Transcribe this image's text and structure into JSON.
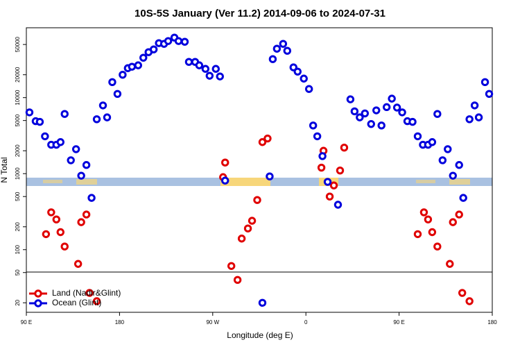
{
  "chart_data": {
    "type": "scatter",
    "title": "10S-5S January (Ver 11.2)   2014-09-06 to 2024-07-31",
    "x_label": "Longitude (deg E)",
    "y_label": "N Total",
    "xlim": [
      90,
      540
    ],
    "xticks": [
      {
        "value": 90,
        "label": "90 E"
      },
      180,
      {
        "value": 270,
        "label": "90 W"
      },
      {
        "value": 360,
        "label": "0"
      },
      {
        "value": 450,
        "label": "90 E"
      },
      {
        "value": 540,
        "label": "180"
      }
    ],
    "ylim": [
      15,
      83000
    ],
    "yticks": [
      20,
      50,
      100,
      200,
      500,
      1000,
      2000,
      5000,
      10000,
      20000,
      50000
    ],
    "ylog": true,
    "legend": "bottomleft",
    "series": [
      {
        "name": "Land (Nadir&Glint)",
        "color": "#e00000",
        "x": [
          109,
          114,
          119,
          123,
          127,
          140,
          143,
          148,
          151,
          158,
          280,
          282,
          288,
          294,
          298,
          304,
          308,
          313,
          318,
          323,
          375,
          377,
          383,
          387,
          393,
          397,
          468,
          474,
          478,
          482,
          487,
          499,
          502,
          508,
          511,
          518
        ],
        "values": [
          160,
          310,
          250,
          170,
          110,
          65,
          230,
          290,
          27,
          21,
          900,
          1400,
          61,
          40,
          140,
          190,
          240,
          450,
          2600,
          2900,
          1200,
          2000,
          500,
          700,
          1100,
          2200,
          160,
          310,
          250,
          170,
          110,
          65,
          230,
          290,
          27,
          21
        ]
      },
      {
        "name": "Ocean (Glint)",
        "color": "#0000dd",
        "x": [
          93,
          99,
          103,
          108,
          114,
          119,
          123,
          127,
          133,
          138,
          143,
          148,
          153,
          158,
          164,
          168,
          173,
          178,
          183,
          188,
          192,
          198,
          203,
          208,
          213,
          218,
          223,
          227,
          233,
          237,
          243,
          247,
          253,
          257,
          263,
          267,
          273,
          277,
          282,
          318,
          325,
          328,
          332,
          338,
          342,
          348,
          352,
          358,
          363,
          367,
          371,
          376,
          381,
          391,
          403,
          407,
          412,
          417,
          423,
          428,
          433,
          438,
          443,
          448,
          453,
          458,
          463,
          468,
          473,
          478,
          482,
          487,
          492,
          497,
          502,
          508,
          512,
          518,
          523,
          527,
          533,
          537
        ],
        "values": [
          6400,
          4900,
          4800,
          3100,
          2400,
          2400,
          2600,
          6100,
          1500,
          2100,
          940,
          1300,
          480,
          5200,
          7900,
          5500,
          16000,
          11200,
          20000,
          24400,
          25500,
          26600,
          33500,
          39600,
          43100,
          52100,
          51000,
          55500,
          61600,
          55500,
          54300,
          29500,
          29500,
          26600,
          23900,
          19400,
          23900,
          19000,
          810,
          20,
          920,
          32100,
          44000,
          51000,
          41300,
          25000,
          22000,
          17800,
          13000,
          4300,
          3100,
          1700,
          780,
          390,
          9500,
          6600,
          5500,
          6200,
          4500,
          6800,
          4300,
          7500,
          9700,
          7400,
          6400,
          4900,
          4800,
          3100,
          2400,
          2400,
          2600,
          6100,
          1500,
          2100,
          940,
          1300,
          480,
          5200,
          7900,
          5500,
          16000,
          11200
        ]
      }
    ]
  }
}
